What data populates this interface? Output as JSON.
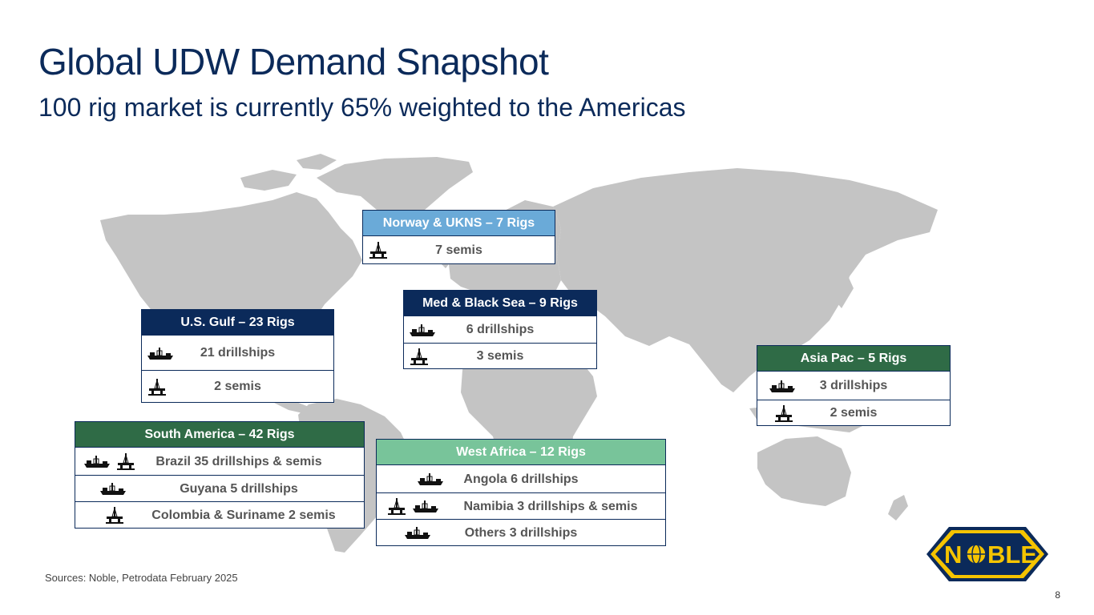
{
  "title": "Global UDW Demand Snapshot",
  "subtitle": "100 rig market is currently 65% weighted to the Americas",
  "colors": {
    "navy": "#0b2a5a",
    "light_blue": "#6aaad8",
    "dark_green": "#2f6b46",
    "mint_green": "#78c49a",
    "map_gray": "#c4c4c4",
    "logo_yellow": "#f5c400"
  },
  "regions": {
    "norway": {
      "header": "Norway & UKNS – 7 Rigs",
      "rows": [
        {
          "icons": [
            "semi-icon"
          ],
          "text": "7 semis"
        }
      ]
    },
    "med": {
      "header": "Med & Black Sea – 9 Rigs",
      "rows": [
        {
          "icons": [
            "drillship-icon"
          ],
          "text": "6 drillships"
        },
        {
          "icons": [
            "semi-icon"
          ],
          "text": "3 semis"
        }
      ]
    },
    "usgulf": {
      "header": "U.S. Gulf – 23 Rigs",
      "rows": [
        {
          "icons": [
            "drillship-icon"
          ],
          "text": "21 drillships"
        },
        {
          "icons": [
            "semi-icon"
          ],
          "text": "2 semis"
        }
      ]
    },
    "asiapac": {
      "header": "Asia Pac – 5 Rigs",
      "rows": [
        {
          "icons": [
            "drillship-icon"
          ],
          "text": "3 drillships"
        },
        {
          "icons": [
            "semi-icon"
          ],
          "text": "2 semis"
        }
      ]
    },
    "southamerica": {
      "header": "South America – 42 Rigs",
      "rows": [
        {
          "icons": [
            "drillship-icon",
            "semi-icon"
          ],
          "text": "Brazil 35 drillships & semis"
        },
        {
          "icons": [
            "drillship-icon"
          ],
          "text": "Guyana 5 drillships"
        },
        {
          "icons": [
            "semi-icon"
          ],
          "text": "Colombia & Suriname 2 semis"
        }
      ]
    },
    "westafrica": {
      "header": "West Africa – 12 Rigs",
      "rows": [
        {
          "icons": [
            "drillship-icon"
          ],
          "text": "Angola 6 drillships"
        },
        {
          "icons": [
            "semi-icon",
            "drillship-icon"
          ],
          "text": "Namibia 3 drillships & semis"
        },
        {
          "icons": [
            "drillship-icon"
          ],
          "text": "Others 3 drillships"
        }
      ]
    }
  },
  "sources": "Sources: Noble, Petrodata February 2025",
  "page_number": "8",
  "logo": {
    "text_left": "N",
    "text_right": "BLE",
    "icon": "globe-icon"
  }
}
